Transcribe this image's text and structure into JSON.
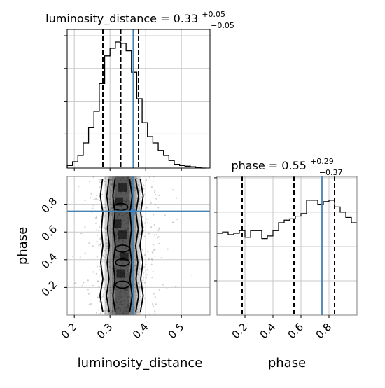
{
  "chart_data": [
    {
      "type": "histogram",
      "panel": "luminosity_distance marginal",
      "title": "luminosity_distance = 0.33",
      "title_sup": "+0.05",
      "title_sub": "−0.05",
      "bin_edges": [
        0.18,
        0.195,
        0.21,
        0.225,
        0.24,
        0.255,
        0.27,
        0.285,
        0.3,
        0.315,
        0.33,
        0.345,
        0.36,
        0.375,
        0.39,
        0.405,
        0.42,
        0.435,
        0.45,
        0.465,
        0.48,
        0.495,
        0.51,
        0.525,
        0.54,
        0.555,
        0.57
      ],
      "counts": [
        0.02,
        0.05,
        0.1,
        0.2,
        0.32,
        0.45,
        0.67,
        0.89,
        0.95,
        1.0,
        0.99,
        0.93,
        0.76,
        0.55,
        0.36,
        0.25,
        0.2,
        0.14,
        0.1,
        0.06,
        0.03,
        0.02,
        0.015,
        0.01,
        0.005,
        0.0
      ],
      "quantiles": [
        0.28,
        0.33,
        0.38
      ],
      "truth": 0.365,
      "xlim": [
        0.18,
        0.58
      ],
      "ylim": [
        0,
        1.1
      ],
      "grid": true
    },
    {
      "type": "histogram",
      "panel": "phase marginal",
      "title": "phase = 0.55",
      "title_sup": "+0.29",
      "title_sub": "−0.37",
      "bin_edges": [
        0.0,
        0.04,
        0.08,
        0.12,
        0.16,
        0.2,
        0.24,
        0.28,
        0.32,
        0.36,
        0.4,
        0.44,
        0.48,
        0.52,
        0.56,
        0.6,
        0.64,
        0.68,
        0.72,
        0.76,
        0.8,
        0.84,
        0.88,
        0.92,
        0.96,
        1.0
      ],
      "counts": [
        0.62,
        0.63,
        0.61,
        0.62,
        0.64,
        0.59,
        0.64,
        0.64,
        0.58,
        0.6,
        0.64,
        0.7,
        0.72,
        0.73,
        0.75,
        0.77,
        0.87,
        0.87,
        0.84,
        0.86,
        0.87,
        0.82,
        0.78,
        0.74,
        0.7
      ],
      "quantiles": [
        0.18,
        0.55,
        0.84
      ],
      "truth": 0.75,
      "xlim": [
        0.0,
        1.0
      ],
      "ylim": [
        0,
        1.05
      ],
      "grid": true
    },
    {
      "type": "heatmap",
      "panel": "2D joint",
      "xlabel": "luminosity_distance",
      "ylabel": "phase",
      "x_ticks": [
        "0.2",
        "0.3",
        "0.4",
        "0.5"
      ],
      "x_tick_values": [
        0.2,
        0.3,
        0.4,
        0.5
      ],
      "y_ticks": [
        "0.2",
        "0.4",
        "0.6",
        "0.8"
      ],
      "y_tick_values": [
        0.2,
        0.4,
        0.6,
        0.8
      ],
      "xlim": [
        0.18,
        0.58
      ],
      "ylim": [
        0.0,
        1.0
      ],
      "phase_x_ticks": [
        "0.2",
        "0.4",
        "0.6",
        "0.8"
      ],
      "phase_x_tick_values": [
        0.2,
        0.4,
        0.6,
        0.8
      ],
      "phase_xlabel": "phase",
      "truth": [
        0.365,
        0.75
      ],
      "contours": [
        {
          "level": "outer",
          "x_left": [
            0.28,
            0.272,
            0.28,
            0.274,
            0.28,
            0.276,
            0.28,
            0.273,
            0.279
          ],
          "x_right": [
            0.385,
            0.393,
            0.386,
            0.392,
            0.384,
            0.391,
            0.386,
            0.393,
            0.385
          ]
        },
        {
          "level": "middle",
          "x_left": [
            0.298,
            0.29,
            0.297,
            0.292,
            0.298,
            0.293,
            0.297,
            0.291,
            0.297
          ],
          "x_right": [
            0.372,
            0.38,
            0.373,
            0.378,
            0.372,
            0.379,
            0.373,
            0.38,
            0.372
          ]
        },
        {
          "level": "inner",
          "x_left": [
            0.315,
            0.308,
            0.314,
            0.309,
            0.315,
            0.31,
            0.314,
            0.308,
            0.314
          ],
          "x_right": [
            0.355,
            0.362,
            0.356,
            0.361,
            0.355,
            0.36,
            0.356,
            0.362,
            0.355
          ]
        }
      ],
      "contour_y": [
        0.02,
        0.14,
        0.26,
        0.38,
        0.5,
        0.62,
        0.74,
        0.86,
        0.98
      ],
      "grid": true
    }
  ]
}
